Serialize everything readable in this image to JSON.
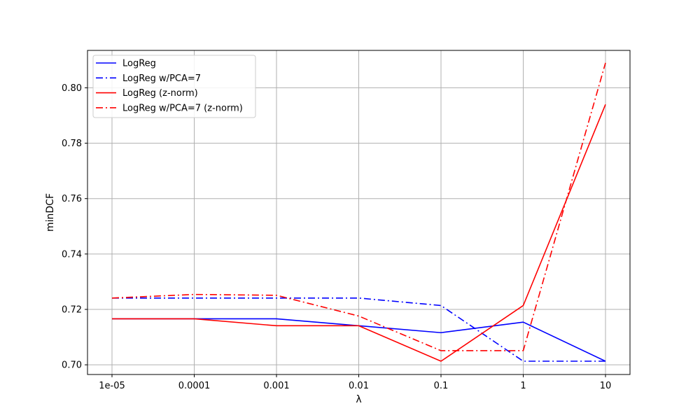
{
  "chart_data": {
    "type": "line",
    "title": "",
    "xlabel": "λ",
    "ylabel": "minDCF",
    "categories": [
      "1e-05",
      "0.0001",
      "0.001",
      "0.01",
      "0.1",
      "1",
      "10"
    ],
    "ylim": [
      0.6965,
      0.8135
    ],
    "yticks": [
      0.7,
      0.72,
      0.74,
      0.76,
      0.78,
      0.8
    ],
    "ytick_labels": [
      "0.70",
      "0.72",
      "0.74",
      "0.76",
      "0.78",
      "0.80"
    ],
    "grid": true,
    "legend_position": "top-left",
    "series": [
      {
        "name": "LogReg",
        "color": "#0000ff",
        "style": "solid",
        "values": [
          0.7166,
          0.7166,
          0.7166,
          0.7141,
          0.7116,
          0.7154,
          0.7013
        ]
      },
      {
        "name": "LogReg w/PCA=7",
        "color": "#0000ff",
        "style": "dashdot",
        "values": [
          0.7241,
          0.7241,
          0.7241,
          0.7241,
          0.7214,
          0.7013,
          0.7013
        ]
      },
      {
        "name": "LogReg (z-norm)",
        "color": "#ff0000",
        "style": "solid",
        "values": [
          0.7166,
          0.7166,
          0.7141,
          0.7141,
          0.7013,
          0.7214,
          0.794
        ]
      },
      {
        "name": "LogReg w/PCA=7 (z-norm)",
        "color": "#ff0000",
        "style": "dashdot",
        "values": [
          0.7241,
          0.7254,
          0.7251,
          0.7176,
          0.7051,
          0.7051,
          0.809
        ]
      }
    ]
  }
}
